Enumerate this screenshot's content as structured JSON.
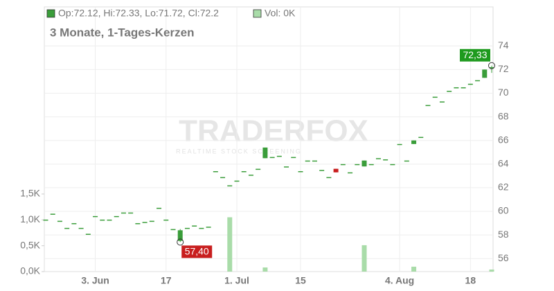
{
  "chart_data": {
    "type": "candlestick",
    "subtitle": "3 Monate, 1-Tages-Kerzen",
    "legend": {
      "ohlc": "Op:72.12, Hi:72.33, Lo:71.72, Cl:72.2",
      "volume": "Vol: 0K"
    },
    "watermark": {
      "brand": "TRADERFOX",
      "tagline": "REALTIME STOCK SCREENING"
    },
    "categories": [
      null,
      null,
      null,
      null,
      null,
      null,
      null,
      "3. Jun",
      null,
      null,
      null,
      null,
      null,
      null,
      null,
      null,
      null,
      "17",
      null,
      null,
      null,
      null,
      null,
      null,
      null,
      null,
      null,
      "1. Jul",
      null,
      null,
      null,
      null,
      null,
      null,
      null,
      null,
      "15",
      null,
      null,
      null,
      null,
      null,
      null,
      null,
      null,
      null,
      null,
      null,
      null,
      null,
      "4. Aug",
      null,
      null,
      null,
      null,
      null,
      null,
      null,
      null,
      null,
      "18",
      null,
      null,
      null
    ],
    "open": [
      59.3,
      59.8,
      59.2,
      58.6,
      59.0,
      58.6,
      58.1,
      59.6,
      59.3,
      59.3,
      59.6,
      59.9,
      59.9,
      59.0,
      59.1,
      59.2,
      60.3,
      59.3,
      58.5,
      57.5,
      58.6,
      58.8,
      58.6,
      58.7,
      63.4,
      62.9,
      62.2,
      62.6,
      63.4,
      63.1,
      63.6,
      64.5,
      64.6,
      64.7,
      63.8,
      64.6,
      63.4,
      64.3,
      64.3,
      63.5,
      62.9,
      63.6,
      64.0,
      63.3,
      64.0,
      63.8,
      64.0,
      64.5,
      64.4,
      64.0,
      65.7,
      64.3,
      65.7,
      66.3,
      69.0,
      69.7,
      69.3,
      70.2,
      70.5,
      70.5,
      70.8,
      71.1,
      71.3,
      72.12
    ],
    "high": [
      59.3,
      59.8,
      59.2,
      58.6,
      59.0,
      58.6,
      58.1,
      59.6,
      59.3,
      59.3,
      59.6,
      59.9,
      59.9,
      59.0,
      59.1,
      59.2,
      60.3,
      59.3,
      58.5,
      58.5,
      58.6,
      58.8,
      58.6,
      58.7,
      63.4,
      62.9,
      62.2,
      62.6,
      63.4,
      63.1,
      63.6,
      65.4,
      64.6,
      64.7,
      63.8,
      64.6,
      63.4,
      64.3,
      64.3,
      63.5,
      62.9,
      63.6,
      64.0,
      63.3,
      64.0,
      64.3,
      64.0,
      64.5,
      64.4,
      64.0,
      65.7,
      64.3,
      66.0,
      66.3,
      69.0,
      69.7,
      69.3,
      70.2,
      70.5,
      70.5,
      70.8,
      71.1,
      72.0,
      72.33
    ],
    "low": [
      59.3,
      59.8,
      59.2,
      58.6,
      59.0,
      58.6,
      58.1,
      59.6,
      59.3,
      59.3,
      59.6,
      59.9,
      59.9,
      59.0,
      59.1,
      59.2,
      60.3,
      59.3,
      58.5,
      57.4,
      58.6,
      58.8,
      58.6,
      58.7,
      63.4,
      62.9,
      62.2,
      62.6,
      63.4,
      63.1,
      63.6,
      64.5,
      64.6,
      64.7,
      63.8,
      64.6,
      63.4,
      64.3,
      64.3,
      63.5,
      62.9,
      63.3,
      64.0,
      63.3,
      64.0,
      63.8,
      64.0,
      64.5,
      64.4,
      64.0,
      65.7,
      64.3,
      65.7,
      66.3,
      69.0,
      69.7,
      69.3,
      70.2,
      70.5,
      70.5,
      70.8,
      71.1,
      71.3,
      71.72
    ],
    "close": [
      59.3,
      59.8,
      59.2,
      58.6,
      59.0,
      58.6,
      58.1,
      59.6,
      59.3,
      59.3,
      59.6,
      59.9,
      59.9,
      59.0,
      59.1,
      59.2,
      60.3,
      59.3,
      58.5,
      58.4,
      58.6,
      58.8,
      58.6,
      58.7,
      63.4,
      62.9,
      62.2,
      62.6,
      63.4,
      63.1,
      63.6,
      65.4,
      64.6,
      64.7,
      63.8,
      64.6,
      63.4,
      64.3,
      64.3,
      63.5,
      62.9,
      63.3,
      64.0,
      63.3,
      64.0,
      64.3,
      64.0,
      64.5,
      64.4,
      64.0,
      65.7,
      64.3,
      66.0,
      66.3,
      69.0,
      69.7,
      69.3,
      70.2,
      70.5,
      70.5,
      70.8,
      71.1,
      72.0,
      72.2
    ],
    "volume": [
      0,
      0,
      0,
      0,
      0,
      0,
      0,
      0,
      0,
      0,
      0,
      0,
      0,
      0,
      0,
      0,
      0,
      0,
      0,
      0,
      0,
      0,
      0,
      0,
      0,
      0,
      1050,
      0,
      0,
      0,
      0,
      80,
      0,
      0,
      0,
      0,
      0,
      0,
      0,
      0,
      0,
      0,
      0,
      0,
      0,
      510,
      0,
      0,
      0,
      0,
      0,
      0,
      95,
      0,
      0,
      0,
      0,
      0,
      0,
      0,
      0,
      0,
      0,
      40
    ],
    "up_color": "#3a9d3a",
    "down_color": "#c81e1e",
    "volume_up_color": "#a9dca9",
    "volume_down_color": "#f2a7b0",
    "ylim": [
      54.9,
      77.3
    ],
    "yticks": [
      56,
      58,
      60,
      62,
      64,
      66,
      68,
      70,
      72,
      74
    ],
    "y2lim": [
      0,
      5115
    ],
    "y2ticks": [
      {
        "value": 0,
        "label": "0,0K"
      },
      {
        "value": 500,
        "label": "0,5K"
      },
      {
        "value": 1000,
        "label": "1,0K"
      },
      {
        "value": 1500,
        "label": "1,5K"
      }
    ],
    "grid": true,
    "annotations": [
      {
        "value": 72.33,
        "label": "72,33",
        "index": 63,
        "color": "#1e9a1e"
      },
      {
        "value": 57.4,
        "label": "57,40",
        "index": 19,
        "color": "#c81e1e"
      }
    ]
  }
}
